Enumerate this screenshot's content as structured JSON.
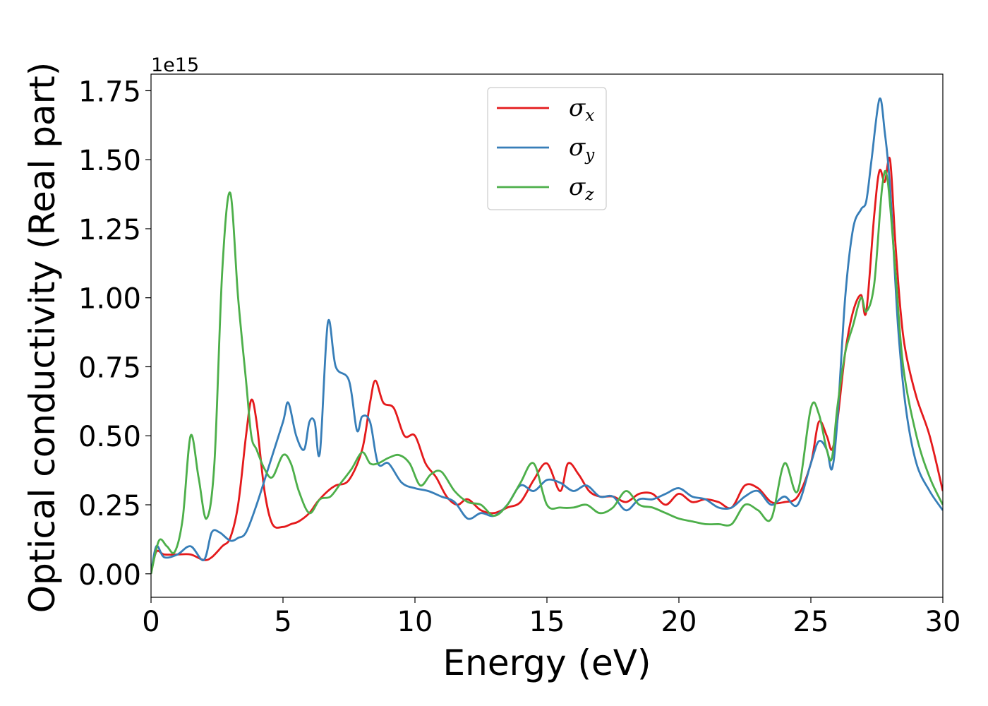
{
  "chart_data": {
    "type": "line",
    "xlabel": "Energy (eV)",
    "ylabel": "Optical conductivity (Real part)",
    "y_offset_text": "1e15",
    "xlim": [
      0,
      30
    ],
    "ylim": [
      -0.085,
      1.81
    ],
    "x_ticks": [
      0,
      5,
      10,
      15,
      20,
      25,
      30
    ],
    "x_tick_labels": [
      "0",
      "5",
      "10",
      "15",
      "20",
      "25",
      "30"
    ],
    "y_ticks": [
      0,
      0.25,
      0.5,
      0.75,
      1.0,
      1.25,
      1.5,
      1.75
    ],
    "y_tick_labels": [
      "0.00",
      "0.25",
      "0.50",
      "0.75",
      "1.00",
      "1.25",
      "1.50",
      "1.75"
    ],
    "grid": false,
    "legend_position": "upper center",
    "series": [
      {
        "name": "σx",
        "symbol": "σ",
        "subscript": "x",
        "color": "#e41a1c",
        "x": [
          0,
          0.2,
          0.5,
          1.0,
          1.5,
          2.0,
          2.3,
          2.7,
          3.0,
          3.3,
          3.6,
          3.8,
          4.0,
          4.3,
          4.6,
          5.0,
          5.3,
          5.6,
          6.0,
          6.3,
          6.7,
          7.0,
          7.5,
          8.0,
          8.3,
          8.5,
          8.8,
          9.2,
          9.6,
          10.0,
          10.4,
          10.8,
          11.2,
          11.6,
          12.0,
          12.5,
          13.0,
          13.5,
          14.0,
          14.5,
          15.0,
          15.5,
          15.8,
          16.2,
          16.6,
          17.0,
          17.5,
          18.0,
          18.5,
          19.0,
          19.5,
          20.0,
          20.5,
          21.0,
          21.5,
          22.0,
          22.5,
          23.0,
          23.5,
          24.0,
          24.5,
          25.0,
          25.3,
          25.6,
          25.8,
          26.0,
          26.3,
          26.6,
          26.9,
          27.1,
          27.4,
          27.6,
          27.8,
          28.0,
          28.2,
          28.4,
          28.6,
          29.0,
          29.5,
          30.0
        ],
        "y": [
          0,
          0.08,
          0.07,
          0.07,
          0.07,
          0.05,
          0.06,
          0.1,
          0.13,
          0.25,
          0.5,
          0.63,
          0.55,
          0.3,
          0.18,
          0.17,
          0.18,
          0.19,
          0.22,
          0.26,
          0.3,
          0.32,
          0.34,
          0.45,
          0.62,
          0.7,
          0.62,
          0.6,
          0.5,
          0.5,
          0.4,
          0.35,
          0.28,
          0.25,
          0.27,
          0.23,
          0.22,
          0.24,
          0.26,
          0.34,
          0.4,
          0.3,
          0.4,
          0.36,
          0.3,
          0.28,
          0.28,
          0.26,
          0.29,
          0.29,
          0.25,
          0.29,
          0.26,
          0.27,
          0.26,
          0.24,
          0.32,
          0.31,
          0.26,
          0.26,
          0.28,
          0.4,
          0.55,
          0.5,
          0.45,
          0.55,
          0.8,
          0.95,
          1.01,
          0.95,
          1.3,
          1.46,
          1.42,
          1.5,
          1.2,
          0.95,
          0.8,
          0.64,
          0.5,
          0.3
        ]
      },
      {
        "name": "σy",
        "symbol": "σ",
        "subscript": "y",
        "color": "#377eb8",
        "x": [
          0,
          0.2,
          0.5,
          1.0,
          1.5,
          2.0,
          2.3,
          2.6,
          3.0,
          3.3,
          3.6,
          4.0,
          4.5,
          5.0,
          5.2,
          5.5,
          5.8,
          6.0,
          6.2,
          6.4,
          6.7,
          7.0,
          7.5,
          7.8,
          8.0,
          8.3,
          8.6,
          9.0,
          9.5,
          10.0,
          10.5,
          11.0,
          11.5,
          12.0,
          12.5,
          13.0,
          13.5,
          14.0,
          14.5,
          15.0,
          15.5,
          16.0,
          16.5,
          17.0,
          17.5,
          18.0,
          18.5,
          19.0,
          19.5,
          20.0,
          20.5,
          21.0,
          21.5,
          22.0,
          22.5,
          23.0,
          23.5,
          24.0,
          24.5,
          25.0,
          25.3,
          25.6,
          25.8,
          26.0,
          26.3,
          26.6,
          26.9,
          27.1,
          27.3,
          27.6,
          27.8,
          28.0,
          28.3,
          28.6,
          29.0,
          29.5,
          30.0
        ],
        "y": [
          0,
          0.1,
          0.06,
          0.07,
          0.1,
          0.05,
          0.15,
          0.15,
          0.12,
          0.13,
          0.15,
          0.25,
          0.4,
          0.55,
          0.62,
          0.5,
          0.45,
          0.55,
          0.55,
          0.44,
          0.91,
          0.75,
          0.7,
          0.52,
          0.57,
          0.55,
          0.4,
          0.4,
          0.33,
          0.31,
          0.3,
          0.28,
          0.26,
          0.2,
          0.22,
          0.21,
          0.25,
          0.32,
          0.3,
          0.34,
          0.33,
          0.3,
          0.32,
          0.28,
          0.28,
          0.23,
          0.27,
          0.27,
          0.29,
          0.31,
          0.28,
          0.27,
          0.24,
          0.24,
          0.28,
          0.3,
          0.25,
          0.28,
          0.25,
          0.4,
          0.48,
          0.45,
          0.38,
          0.55,
          1.0,
          1.25,
          1.32,
          1.35,
          1.5,
          1.72,
          1.6,
          1.4,
          0.9,
          0.6,
          0.4,
          0.3,
          0.23
        ]
      },
      {
        "name": "σz",
        "symbol": "σ",
        "subscript": "z",
        "color": "#4daf4a",
        "x": [
          0,
          0.3,
          0.6,
          0.9,
          1.2,
          1.5,
          1.8,
          2.1,
          2.4,
          2.7,
          3.0,
          3.3,
          3.6,
          3.8,
          4.0,
          4.3,
          4.6,
          5.0,
          5.3,
          5.6,
          6.0,
          6.4,
          6.8,
          7.2,
          7.6,
          8.0,
          8.3,
          8.6,
          9.0,
          9.4,
          9.8,
          10.2,
          10.6,
          11.0,
          11.5,
          12.0,
          12.5,
          13.0,
          13.5,
          14.0,
          14.5,
          15.0,
          15.5,
          16.0,
          16.5,
          17.0,
          17.5,
          18.0,
          18.5,
          19.0,
          19.5,
          20.0,
          20.5,
          21.0,
          21.5,
          22.0,
          22.5,
          23.0,
          23.5,
          24.0,
          24.5,
          25.0,
          25.3,
          25.6,
          25.8,
          26.0,
          26.3,
          26.6,
          26.9,
          27.1,
          27.4,
          27.7,
          27.9,
          28.2,
          28.5,
          29.0,
          29.5,
          30.0
        ],
        "y": [
          0,
          0.12,
          0.1,
          0.08,
          0.2,
          0.5,
          0.35,
          0.2,
          0.4,
          1.1,
          1.38,
          1.0,
          0.7,
          0.5,
          0.45,
          0.38,
          0.35,
          0.43,
          0.4,
          0.3,
          0.22,
          0.27,
          0.28,
          0.33,
          0.38,
          0.44,
          0.4,
          0.4,
          0.42,
          0.43,
          0.4,
          0.32,
          0.36,
          0.37,
          0.3,
          0.26,
          0.25,
          0.21,
          0.25,
          0.33,
          0.4,
          0.25,
          0.24,
          0.24,
          0.25,
          0.22,
          0.24,
          0.3,
          0.25,
          0.24,
          0.22,
          0.2,
          0.19,
          0.18,
          0.18,
          0.18,
          0.25,
          0.23,
          0.2,
          0.4,
          0.3,
          0.6,
          0.58,
          0.45,
          0.42,
          0.6,
          0.8,
          0.9,
          1.0,
          0.95,
          1.05,
          1.4,
          1.43,
          1.1,
          0.75,
          0.5,
          0.35,
          0.25
        ]
      }
    ]
  }
}
